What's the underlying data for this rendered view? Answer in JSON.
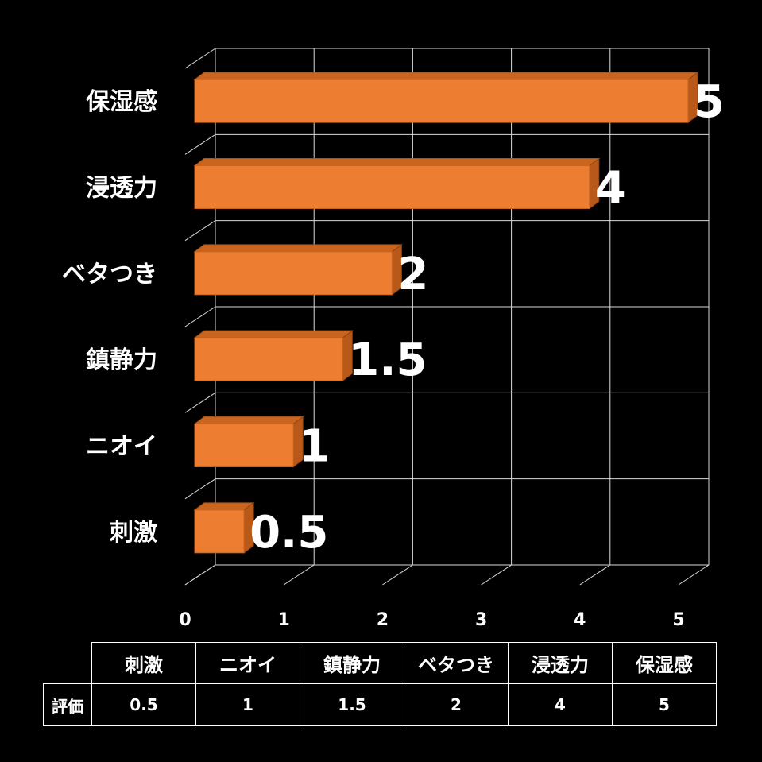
{
  "chart_data": {
    "type": "bar",
    "orientation": "horizontal",
    "categories": [
      "保湿感",
      "浸透力",
      "ベタつき",
      "鎮静力",
      "ニオイ",
      "刺激"
    ],
    "values": [
      5,
      4,
      2,
      1.5,
      1,
      0.5
    ],
    "value_labels": [
      "5",
      "4",
      "2",
      "1.5",
      "1",
      "0.5"
    ],
    "xlim": [
      0,
      5
    ],
    "x_ticks": [
      "0",
      "1",
      "2",
      "3",
      "4",
      "5"
    ],
    "grid": true,
    "style": "3d",
    "bar_color": "#ED7D31",
    "background": "#000000"
  },
  "data_table": {
    "row_header": "評価",
    "columns": [
      "刺激",
      "ニオイ",
      "鎮静力",
      "ベタつき",
      "浸透力",
      "保湿感"
    ],
    "values": [
      "0.5",
      "1",
      "1.5",
      "2",
      "4",
      "5"
    ]
  }
}
